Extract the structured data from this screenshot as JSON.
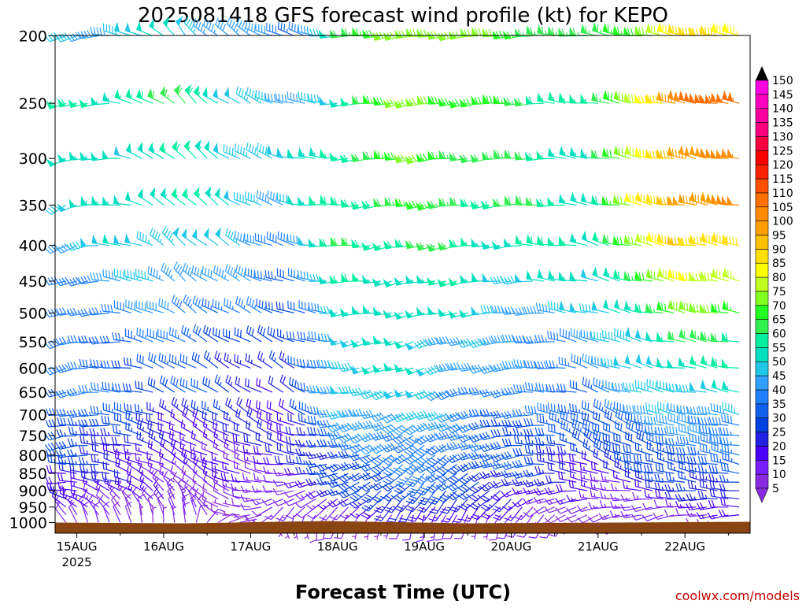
{
  "chart_data": {
    "type": "wind_barbs",
    "title": "2025081418 GFS forecast wind profile (kt) for KEPO",
    "xlabel": "Forecast Time (UTC)",
    "credit": "coolwx.com/models",
    "y_axis": {
      "scale": "log",
      "inverted": true,
      "range": [
        200,
        1000
      ],
      "ticks": [
        200,
        250,
        300,
        350,
        400,
        450,
        500,
        550,
        600,
        650,
        700,
        750,
        800,
        850,
        900,
        950,
        1000
      ]
    },
    "x_axis": {
      "range_hours": [
        -6,
        186
      ],
      "ticks": [
        {
          "hour": 0,
          "label": "15AUG",
          "sublabel": "2025"
        },
        {
          "hour": 24,
          "label": "16AUG",
          "sublabel": ""
        },
        {
          "hour": 48,
          "label": "17AUG",
          "sublabel": ""
        },
        {
          "hour": 72,
          "label": "18AUG",
          "sublabel": ""
        },
        {
          "hour": 96,
          "label": "19AUG",
          "sublabel": ""
        },
        {
          "hour": 120,
          "label": "20AUG",
          "sublabel": ""
        },
        {
          "hour": 144,
          "label": "21AUG",
          "sublabel": ""
        },
        {
          "hour": 168,
          "label": "22AUG",
          "sublabel": ""
        }
      ]
    },
    "colorbar": {
      "levels": [
        5,
        10,
        15,
        20,
        25,
        30,
        35,
        40,
        45,
        50,
        55,
        60,
        65,
        70,
        75,
        80,
        85,
        90,
        95,
        100,
        105,
        110,
        115,
        120,
        125,
        130,
        135,
        140,
        145,
        150
      ],
      "colors": [
        "#8a2be2",
        "#7a1fff",
        "#4b00ff",
        "#2020e0",
        "#0040e0",
        "#1060f0",
        "#2080ff",
        "#30a0ff",
        "#20c8e8",
        "#00e0c0",
        "#00f0a0",
        "#30f050",
        "#20ff20",
        "#80ff20",
        "#c0ff20",
        "#ffff00",
        "#ffe000",
        "#ffc000",
        "#ffa000",
        "#ff8c00",
        "#ff7000",
        "#ff5000",
        "#ff2000",
        "#ff0000",
        "#ff0040",
        "#ff0080",
        "#ff00a0",
        "#ff00c0",
        "#ff00e0",
        "#ff20ff"
      ]
    },
    "surface_color": "#8b4513",
    "times_hours": [
      -3,
      0,
      3,
      6,
      9,
      12,
      15,
      18,
      21,
      24,
      27,
      30,
      33,
      36,
      39,
      42,
      45,
      48,
      51,
      54,
      57,
      60,
      63,
      66,
      69,
      72,
      75,
      78,
      81,
      84,
      87,
      90,
      93,
      96,
      99,
      102,
      105,
      108,
      111,
      114,
      117,
      120,
      123,
      126,
      129,
      132,
      135,
      138,
      141,
      144,
      147,
      150,
      153,
      156,
      159,
      162,
      165,
      168,
      171,
      174,
      177,
      180,
      183
    ],
    "levels_hpa": [
      1000,
      975,
      950,
      925,
      900,
      875,
      850,
      825,
      800,
      775,
      750,
      725,
      700,
      650,
      600,
      550,
      500,
      450,
      400,
      350,
      300,
      250,
      200
    ],
    "profile_anchors": [
      {
        "hour": -3,
        "speed": [
          10,
          12,
          15,
          18,
          20,
          22,
          22,
          25,
          25,
          28,
          30,
          32,
          35,
          35,
          35,
          35,
          38,
          40,
          45,
          48,
          50,
          55,
          45
        ],
        "dir": [
          330,
          320,
          300,
          290,
          280,
          270,
          270,
          270,
          265,
          260,
          260,
          260,
          260,
          255,
          255,
          250,
          250,
          250,
          245,
          245,
          245,
          245,
          245
        ]
      },
      {
        "hour": 30,
        "speed": [
          8,
          10,
          10,
          12,
          12,
          15,
          15,
          15,
          15,
          18,
          18,
          20,
          25,
          30,
          30,
          35,
          40,
          45,
          50,
          55,
          55,
          60,
          50
        ],
        "dir": [
          360,
          350,
          340,
          330,
          320,
          310,
          310,
          300,
          300,
          300,
          300,
          300,
          300,
          300,
          300,
          300,
          305,
          310,
          315,
          315,
          315,
          315,
          320
        ]
      },
      {
        "hour": 60,
        "speed": [
          5,
          8,
          10,
          10,
          12,
          15,
          15,
          18,
          18,
          18,
          20,
          20,
          20,
          20,
          22,
          25,
          30,
          35,
          40,
          45,
          45,
          40,
          35
        ],
        "dir": [
          170,
          200,
          220,
          240,
          250,
          260,
          270,
          275,
          280,
          285,
          290,
          295,
          300,
          300,
          300,
          295,
          290,
          285,
          285,
          285,
          285,
          285,
          290
        ]
      },
      {
        "hour": 75,
        "speed": [
          8,
          10,
          15,
          20,
          25,
          25,
          28,
          30,
          30,
          35,
          38,
          40,
          45,
          50,
          50,
          50,
          50,
          55,
          60,
          60,
          60,
          55,
          60
        ],
        "dir": [
          200,
          220,
          230,
          240,
          245,
          250,
          250,
          250,
          255,
          255,
          255,
          255,
          260,
          260,
          260,
          260,
          265,
          265,
          265,
          265,
          265,
          265,
          265
        ]
      },
      {
        "hour": 96,
        "speed": [
          10,
          15,
          20,
          25,
          30,
          32,
          35,
          35,
          38,
          40,
          40,
          45,
          45,
          45,
          50,
          50,
          55,
          55,
          60,
          65,
          70,
          75,
          75
        ],
        "dir": [
          190,
          200,
          210,
          215,
          220,
          225,
          225,
          230,
          230,
          235,
          240,
          240,
          245,
          245,
          250,
          250,
          255,
          255,
          255,
          260,
          260,
          260,
          260
        ]
      },
      {
        "hour": 120,
        "speed": [
          10,
          12,
          15,
          20,
          20,
          25,
          25,
          30,
          30,
          30,
          30,
          30,
          35,
          35,
          40,
          40,
          45,
          50,
          55,
          60,
          60,
          65,
          70
        ],
        "dir": [
          200,
          210,
          220,
          230,
          240,
          245,
          250,
          255,
          255,
          260,
          260,
          260,
          260,
          260,
          260,
          260,
          265,
          265,
          265,
          265,
          265,
          265,
          265
        ]
      },
      {
        "hour": 144,
        "speed": [
          8,
          10,
          10,
          12,
          15,
          15,
          20,
          20,
          25,
          25,
          30,
          30,
          35,
          35,
          40,
          40,
          45,
          50,
          55,
          55,
          55,
          55,
          60
        ],
        "dir": [
          230,
          250,
          260,
          270,
          280,
          285,
          290,
          295,
          295,
          300,
          300,
          300,
          295,
          290,
          290,
          290,
          285,
          285,
          285,
          280,
          280,
          280,
          280
        ]
      },
      {
        "hour": 168,
        "speed": [
          10,
          12,
          15,
          20,
          22,
          25,
          28,
          30,
          30,
          35,
          38,
          40,
          45,
          50,
          55,
          60,
          70,
          80,
          90,
          100,
          100,
          105,
          85
        ],
        "dir": [
          250,
          260,
          265,
          270,
          275,
          280,
          280,
          280,
          280,
          280,
          280,
          280,
          280,
          280,
          280,
          280,
          280,
          280,
          280,
          280,
          280,
          280,
          280
        ]
      },
      {
        "hour": 183,
        "speed": [
          12,
          15,
          18,
          22,
          25,
          28,
          30,
          32,
          35,
          38,
          40,
          42,
          45,
          50,
          55,
          60,
          70,
          80,
          90,
          100,
          100,
          105,
          85
        ],
        "dir": [
          260,
          265,
          270,
          272,
          275,
          278,
          280,
          280,
          280,
          280,
          280,
          280,
          280,
          280,
          280,
          280,
          280,
          280,
          280,
          280,
          280,
          280,
          280
        ]
      }
    ]
  }
}
